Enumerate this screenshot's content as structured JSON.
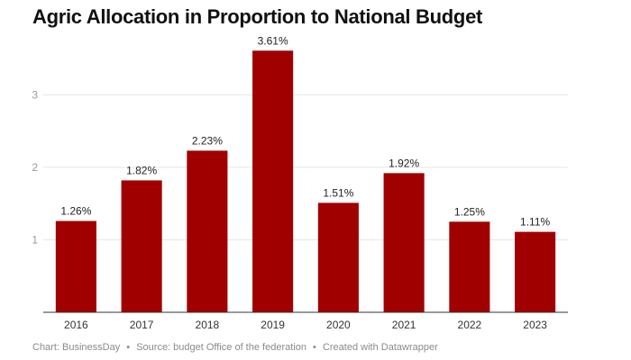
{
  "chart_data": {
    "type": "bar",
    "title": "Agric Allocation in Proportion to National Budget",
    "categories": [
      "2016",
      "2017",
      "2018",
      "2019",
      "2020",
      "2021",
      "2022",
      "2023"
    ],
    "values": [
      1.26,
      1.82,
      2.23,
      3.61,
      1.51,
      1.92,
      1.25,
      1.11
    ],
    "value_labels": [
      "1.26%",
      "1.82%",
      "2.23%",
      "3.61%",
      "1.51%",
      "1.92%",
      "1.25%",
      "1.11%"
    ],
    "yticks": [
      "1",
      "2",
      "3"
    ],
    "ylim": [
      0,
      3.75
    ],
    "xlabel": "",
    "ylabel": "",
    "grid": true,
    "bar_color": "#a00000"
  },
  "footer": {
    "chart_credit": "Chart: BusinessDay",
    "source": "Source: budget Office of the federation",
    "created": "Created with Datawrapper",
    "separator": "•"
  }
}
